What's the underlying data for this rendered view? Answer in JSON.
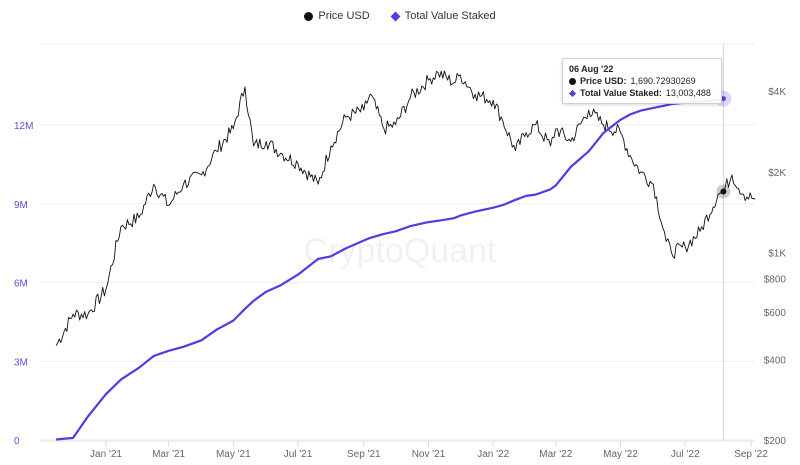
{
  "legend": {
    "items": [
      {
        "label": "Price USD",
        "marker": "circle",
        "color": "#111111"
      },
      {
        "label": "Total Value Staked",
        "marker": "diamond",
        "color": "#4b3fe0"
      }
    ]
  },
  "watermark": "CryptoQuant",
  "tooltip": {
    "date": "06 Aug '22",
    "price_label": "Price USD:",
    "price_value": "1,690.72930269",
    "staked_label": "Total Value Staked:",
    "staked_value": "13,003,488"
  },
  "colors": {
    "price": "#111111",
    "staked": "#4b3fe0",
    "grid": "#eeeeee",
    "left_axis_text": "#5a50d8",
    "right_axis_text": "#666666"
  },
  "chart_data": {
    "type": "line",
    "title": "",
    "xlabel": "",
    "ylabel_left": "Total Value Staked",
    "ylabel_right": "Price USD",
    "x_ticks": [
      "Jan '21",
      "Mar '21",
      "May '21",
      "Jul '21",
      "Sep '21",
      "Nov '21",
      "Jan '22",
      "Mar '22",
      "May '22",
      "Jul '22",
      "Sep '22"
    ],
    "y_left_ticks": [
      "0",
      "3M",
      "6M",
      "9M",
      "12M"
    ],
    "y_left_range": [
      0,
      14000000
    ],
    "y_right_ticks": [
      "$200",
      "$400",
      "$600",
      "$800",
      "$1K",
      "$2K",
      "$4K"
    ],
    "y_right_scale": "log",
    "y_right_range": [
      200,
      5000
    ],
    "grid": true,
    "legend_position": "top",
    "x": [
      "2020-11-15",
      "2020-12-01",
      "2020-12-15",
      "2021-01-01",
      "2021-01-15",
      "2021-02-01",
      "2021-02-15",
      "2021-03-01",
      "2021-03-15",
      "2021-04-01",
      "2021-04-15",
      "2021-05-01",
      "2021-05-12",
      "2021-05-20",
      "2021-06-01",
      "2021-06-15",
      "2021-07-01",
      "2021-07-20",
      "2021-08-01",
      "2021-08-15",
      "2021-09-01",
      "2021-09-07",
      "2021-09-20",
      "2021-10-01",
      "2021-10-15",
      "2021-11-01",
      "2021-11-10",
      "2021-11-25",
      "2021-12-01",
      "2021-12-15",
      "2022-01-01",
      "2022-01-10",
      "2022-01-22",
      "2022-02-01",
      "2022-02-10",
      "2022-02-24",
      "2022-03-01",
      "2022-03-15",
      "2022-04-01",
      "2022-04-15",
      "2022-05-01",
      "2022-05-10",
      "2022-05-20",
      "2022-06-01",
      "2022-06-13",
      "2022-06-18",
      "2022-07-01",
      "2022-07-15",
      "2022-08-01",
      "2022-08-06",
      "2022-08-14",
      "2022-08-25",
      "2022-09-05"
    ],
    "series": [
      {
        "name": "Price USD",
        "axis": "right",
        "values": [
          450,
          590,
          590,
          730,
          1250,
          1350,
          1800,
          1500,
          1800,
          1950,
          2400,
          2900,
          4150,
          2500,
          2600,
          2350,
          2150,
          1800,
          2500,
          3200,
          3400,
          3900,
          2900,
          3000,
          3800,
          4400,
          4700,
          4300,
          4600,
          3900,
          3700,
          3100,
          2400,
          2800,
          3000,
          2500,
          2900,
          2600,
          3400,
          3000,
          2800,
          2300,
          2000,
          1800,
          1100,
          1000,
          1050,
          1200,
          1650,
          1690,
          1950,
          1650,
          1580
        ]
      },
      {
        "name": "Total Value Staked",
        "axis": "left",
        "values": [
          20000,
          80000,
          900000,
          1750000,
          2300000,
          2750000,
          3200000,
          3400000,
          3550000,
          3800000,
          4200000,
          4550000,
          5000000,
          5300000,
          5650000,
          5900000,
          6300000,
          6900000,
          7000000,
          7300000,
          7600000,
          7700000,
          7850000,
          7950000,
          8150000,
          8300000,
          8350000,
          8450000,
          8550000,
          8700000,
          8850000,
          8950000,
          9150000,
          9300000,
          9350000,
          9550000,
          9700000,
          10400000,
          11000000,
          11700000,
          12200000,
          12400000,
          12550000,
          12650000,
          12750000,
          12800000,
          12850000,
          12900000,
          12950000,
          13003488,
          13003488,
          13003488,
          13003488
        ]
      }
    ]
  }
}
